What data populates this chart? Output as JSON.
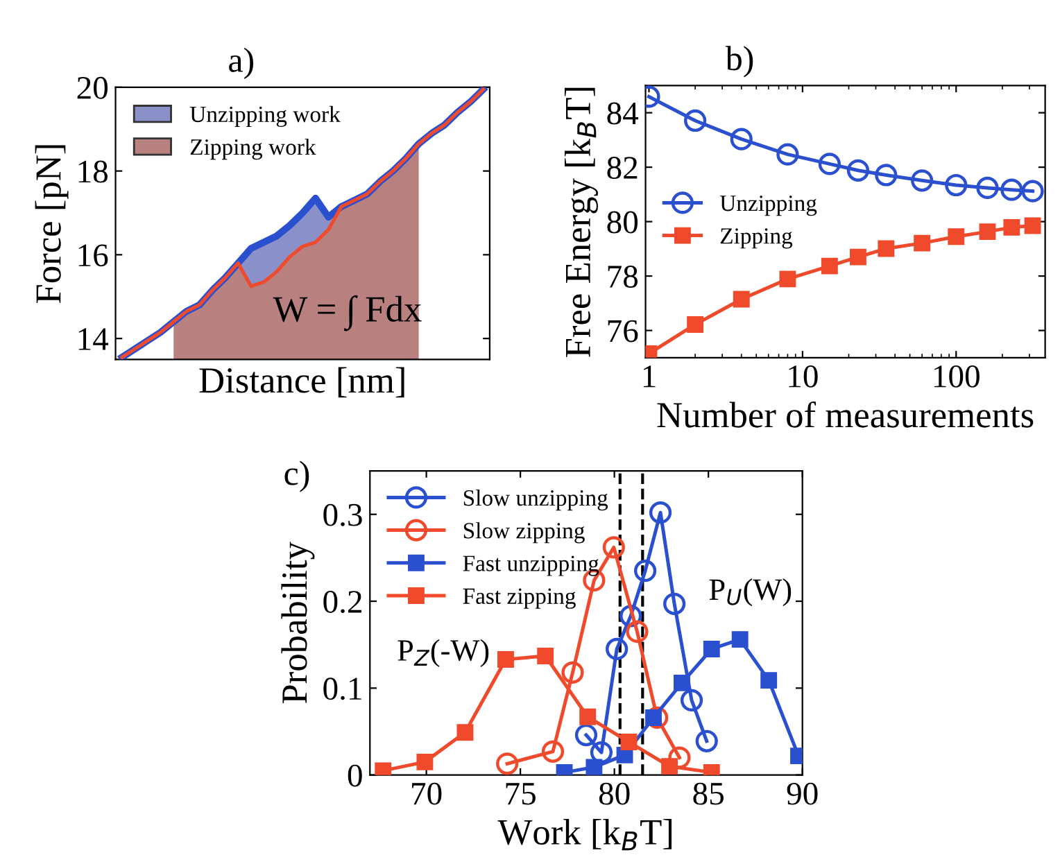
{
  "chart_data": [
    {
      "type": "line",
      "title": "a)",
      "xlabel": "Distance [nm]",
      "ylabel": "Force [pN]",
      "tick_labels": "y",
      "legend": "top left",
      "grid": false,
      "categories": [
        null,
        null,
        null,
        null,
        null,
        null,
        null,
        null,
        null,
        null,
        null,
        null,
        null,
        null,
        null,
        null,
        null,
        null,
        null,
        null,
        null,
        null,
        null,
        null,
        null,
        null,
        null,
        null,
        null
      ],
      "ylim": [
        13.5,
        20
      ],
      "yticks": [
        14,
        16,
        18,
        20
      ],
      "series": [
        {
          "type": "area",
          "name": "Unzipping work",
          "color": "#8a90c8",
          "values": [
            null,
            null,
            null,
            null,
            null,
            null,
            null,
            null,
            null,
            15.8,
            16.15,
            16.3,
            16.45,
            16.7,
            17.0,
            17.35,
            16.9,
            17.15,
            null,
            null,
            null,
            null,
            null,
            null,
            null,
            null,
            null,
            null,
            null
          ]
        },
        {
          "type": "area",
          "name": "Zipping work",
          "color": "#b98080",
          "values": [
            null,
            null,
            null,
            null,
            14.4,
            14.65,
            14.8,
            15.15,
            15.45,
            15.8,
            15.25,
            15.35,
            15.6,
            15.95,
            16.2,
            16.3,
            16.6,
            17.15,
            17.3,
            17.45,
            17.75,
            18.0,
            18.3,
            18.65,
            null,
            null,
            null,
            null,
            null
          ]
        },
        {
          "type": "line",
          "color": "#2a50d0",
          "values": [
            13.55,
            13.75,
            13.95,
            14.15,
            14.4,
            14.65,
            14.8,
            15.15,
            15.45,
            15.8,
            16.15,
            16.3,
            16.45,
            16.7,
            17.0,
            17.35,
            16.9,
            17.15,
            17.3,
            17.45,
            17.75,
            18.0,
            18.3,
            18.65,
            18.9,
            19.1,
            19.4,
            19.65,
            19.95
          ]
        },
        {
          "type": "line",
          "color": "#f04a2c",
          "values": [
            13.55,
            13.75,
            13.95,
            14.15,
            14.4,
            14.65,
            14.8,
            15.15,
            15.45,
            15.8,
            15.25,
            15.35,
            15.6,
            15.95,
            16.2,
            16.3,
            16.6,
            17.15,
            17.3,
            17.45,
            17.75,
            18.0,
            18.3,
            18.65,
            18.9,
            19.1,
            19.4,
            19.65,
            19.95
          ]
        }
      ],
      "annotations": [
        "W = ∫ Fdx"
      ]
    },
    {
      "type": "line",
      "title": "b)",
      "xlabel": "Number of measurements",
      "ylabel": "Free Energy [k$_{B}$T]",
      "log": "x",
      "legend": "left",
      "grid": false,
      "x": [
        1,
        2,
        4,
        8,
        15,
        23,
        35,
        60,
        100,
        160,
        230,
        315
      ],
      "xlim": [
        0.95,
        380
      ],
      "xticks": [
        1,
        10,
        100
      ],
      "ylim": [
        75,
        85
      ],
      "yticks": [
        76,
        78,
        80,
        82,
        84
      ],
      "series": [
        {
          "name": "Unzipping",
          "color": "#2a50d0",
          "marker": "circle",
          "values": [
            84.59,
            83.71,
            83.03,
            82.47,
            82.12,
            81.88,
            81.71,
            81.51,
            81.34,
            81.24,
            81.17,
            81.12
          ]
        },
        {
          "name": "Zipping",
          "color": "#f04a2c",
          "marker": "square",
          "values": [
            75.15,
            76.22,
            77.15,
            77.89,
            78.37,
            78.7,
            79.01,
            79.21,
            79.45,
            79.63,
            79.79,
            79.85
          ]
        }
      ]
    },
    {
      "type": "line",
      "title": "c)",
      "xlabel": "Work [k$_{B}$T]",
      "ylabel": "Probability",
      "legend": "top left",
      "grid": false,
      "xlim": [
        67,
        90
      ],
      "xticks": [
        70,
        75,
        80,
        85,
        90
      ],
      "ylim": [
        0,
        0.35
      ],
      "yticks": [
        0,
        0.1,
        0.2,
        0.3
      ],
      "series": [
        {
          "name": "Slow unzipping",
          "color": "#2a50d0",
          "marker": "circle",
          "x": [
            78.5,
            79.31,
            80.13,
            80.87,
            81.64,
            82.45,
            83.19,
            84.11,
            84.91
          ],
          "values": [
            0.046,
            0.026,
            0.145,
            0.183,
            0.235,
            0.302,
            0.197,
            0.086,
            0.039
          ]
        },
        {
          "name": "Slow zipping",
          "color": "#f04a2c",
          "marker": "circle",
          "x": [
            74.3,
            76.73,
            77.78,
            78.92,
            79.97,
            81.21,
            82.27,
            83.46
          ],
          "values": [
            0.013,
            0.027,
            0.118,
            0.224,
            0.262,
            0.165,
            0.066,
            0.02
          ]
        },
        {
          "name": "Fast unzipping",
          "color": "#2a50d0",
          "marker": "square",
          "x": [
            77.34,
            78.92,
            80.55,
            82.08,
            83.59,
            85.17,
            86.68,
            88.21,
            89.79
          ],
          "values": [
            0.003,
            0.009,
            0.023,
            0.066,
            0.106,
            0.145,
            0.156,
            0.109,
            0.022
          ]
        },
        {
          "name": "Fast zipping",
          "color": "#f04a2c",
          "marker": "square",
          "x": [
            67.7,
            69.92,
            72.06,
            74.22,
            76.33,
            78.58,
            80.77,
            82.93,
            85.17
          ],
          "values": [
            0.005,
            0.015,
            0.049,
            0.133,
            0.137,
            0.067,
            0.038,
            0.01,
            0.003
          ]
        }
      ],
      "ref_lines": [
        {
          "axis": "x",
          "value": 80.3,
          "color": "#000000",
          "line_style": "dashed"
        },
        {
          "axis": "x",
          "value": 81.5,
          "color": "#000000",
          "line_style": "dashed"
        }
      ],
      "annotations": [
        "P$_{U}$(W)",
        "P$_{Z}$(-W)"
      ]
    }
  ]
}
